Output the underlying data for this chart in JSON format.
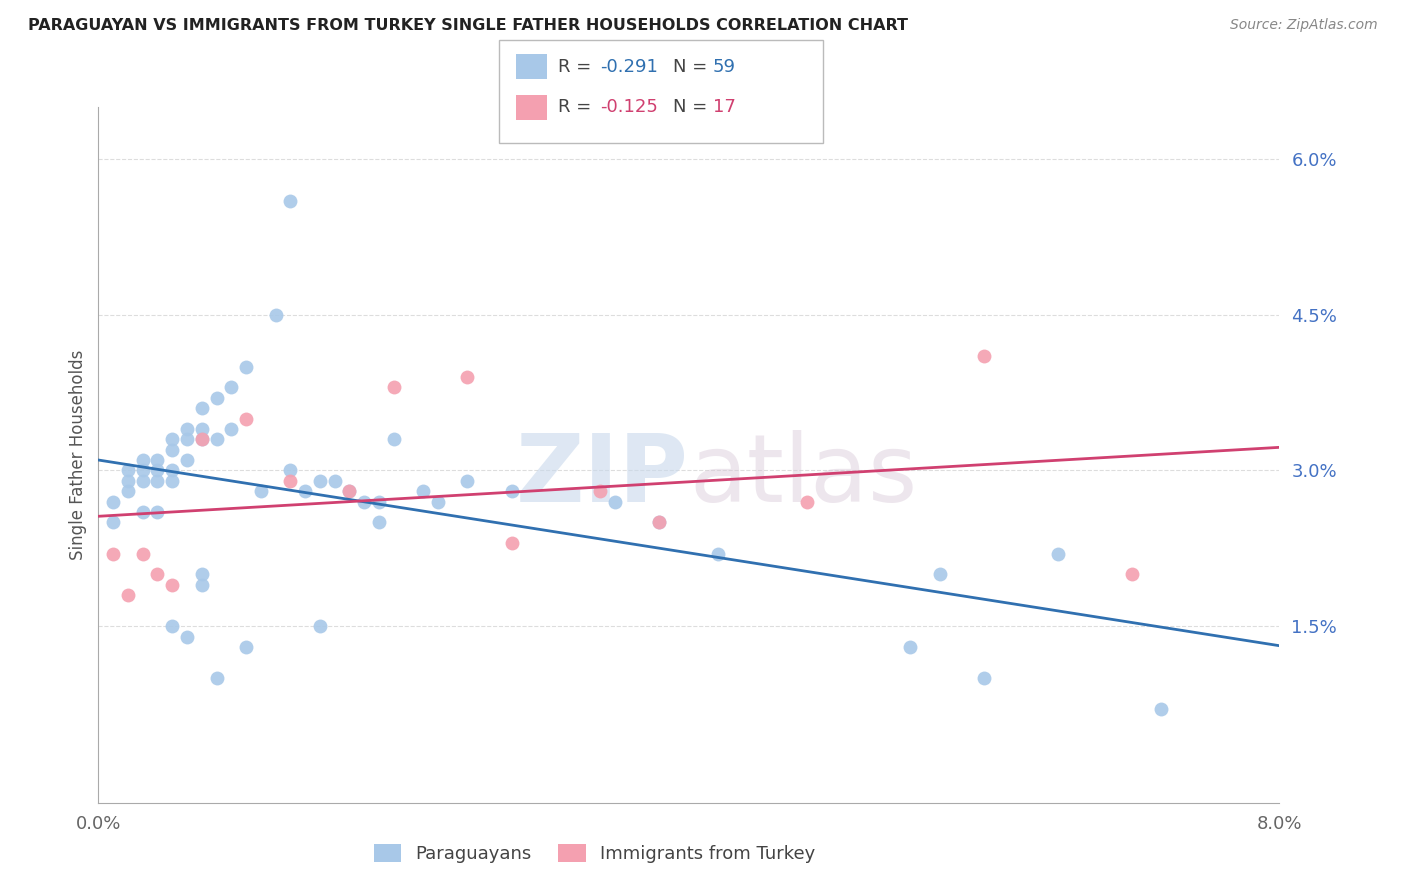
{
  "title": "PARAGUAYAN VS IMMIGRANTS FROM TURKEY SINGLE FATHER HOUSEHOLDS CORRELATION CHART",
  "source": "Source: ZipAtlas.com",
  "ylabel": "Single Father Households",
  "xlim": [
    0.0,
    0.08
  ],
  "ylim": [
    -0.002,
    0.065
  ],
  "yticks": [
    0.015,
    0.03,
    0.045,
    0.06
  ],
  "ytick_labels": [
    "1.5%",
    "3.0%",
    "4.5%",
    "6.0%"
  ],
  "xticks": [
    0.0,
    0.02,
    0.04,
    0.06,
    0.08
  ],
  "xtick_labels": [
    "0.0%",
    "",
    "",
    "",
    "8.0%"
  ],
  "blue_R": -0.291,
  "blue_N": 59,
  "pink_R": -0.125,
  "pink_N": 17,
  "blue_color": "#a8c8e8",
  "pink_color": "#f4a0b0",
  "blue_line_color": "#3070b0",
  "pink_line_color": "#d04070",
  "watermark_zip": "ZIP",
  "watermark_atlas": "atlas",
  "legend_label_blue": "Paraguayans",
  "legend_label_pink": "Immigrants from Turkey",
  "blue_x": [
    0.001,
    0.001,
    0.002,
    0.002,
    0.002,
    0.003,
    0.003,
    0.003,
    0.003,
    0.004,
    0.004,
    0.004,
    0.004,
    0.005,
    0.005,
    0.005,
    0.005,
    0.005,
    0.006,
    0.006,
    0.006,
    0.006,
    0.007,
    0.007,
    0.007,
    0.007,
    0.007,
    0.008,
    0.008,
    0.008,
    0.009,
    0.009,
    0.01,
    0.01,
    0.011,
    0.012,
    0.013,
    0.013,
    0.014,
    0.015,
    0.015,
    0.016,
    0.017,
    0.018,
    0.019,
    0.019,
    0.02,
    0.022,
    0.023,
    0.025,
    0.028,
    0.035,
    0.038,
    0.042,
    0.055,
    0.057,
    0.06,
    0.065,
    0.072
  ],
  "blue_y": [
    0.027,
    0.025,
    0.03,
    0.029,
    0.028,
    0.031,
    0.03,
    0.029,
    0.026,
    0.031,
    0.03,
    0.029,
    0.026,
    0.033,
    0.032,
    0.03,
    0.029,
    0.015,
    0.034,
    0.033,
    0.031,
    0.014,
    0.036,
    0.034,
    0.033,
    0.02,
    0.019,
    0.037,
    0.033,
    0.01,
    0.038,
    0.034,
    0.04,
    0.013,
    0.028,
    0.045,
    0.056,
    0.03,
    0.028,
    0.029,
    0.015,
    0.029,
    0.028,
    0.027,
    0.027,
    0.025,
    0.033,
    0.028,
    0.027,
    0.029,
    0.028,
    0.027,
    0.025,
    0.022,
    0.013,
    0.02,
    0.01,
    0.022,
    0.007
  ],
  "pink_x": [
    0.001,
    0.002,
    0.003,
    0.004,
    0.005,
    0.007,
    0.01,
    0.013,
    0.017,
    0.02,
    0.025,
    0.028,
    0.034,
    0.038,
    0.048,
    0.06,
    0.07
  ],
  "pink_y": [
    0.022,
    0.018,
    0.022,
    0.02,
    0.019,
    0.033,
    0.035,
    0.029,
    0.028,
    0.038,
    0.039,
    0.023,
    0.028,
    0.025,
    0.027,
    0.041,
    0.02
  ],
  "background_color": "#ffffff",
  "grid_color": "#dddddd",
  "tick_color": "#4472c4"
}
